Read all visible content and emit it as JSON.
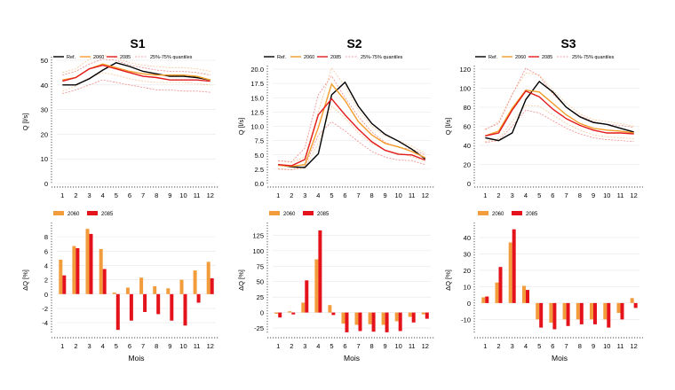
{
  "months_label": "Mois",
  "legend_labels": {
    "ref": "Ref.",
    "y2060": "2060",
    "y2085": "2085",
    "quant": "25%-75% quantiles"
  },
  "colors": {
    "ref": "#000000",
    "y2060": "#f39c2a",
    "y2085": "#e31a1c",
    "y2060_bar": "#f39c3c",
    "y2085_bar": "#e4131b",
    "band_2060": "#f5c89a",
    "band_2085": "#f08a8a"
  },
  "chart_data": [
    {
      "id": "S1",
      "type": "line",
      "title": "S1",
      "ylabel": "Q [l/s]",
      "xlabel": "",
      "x": [
        1,
        2,
        3,
        4,
        5,
        6,
        7,
        8,
        9,
        10,
        11,
        12
      ],
      "ylim": [
        0,
        50
      ],
      "yticks": [
        0,
        10,
        20,
        30,
        40,
        50
      ],
      "legend": "top",
      "series": [
        {
          "name": "Ref.",
          "key": "ref",
          "values": [
            40,
            40,
            42.5,
            46,
            49,
            47.5,
            45.5,
            44.5,
            43.5,
            43.5,
            43,
            42
          ]
        },
        {
          "name": "2060",
          "key": "y2060",
          "values": [
            42,
            43,
            46.5,
            48.5,
            47,
            45.5,
            44.5,
            44,
            44,
            44,
            43.5,
            42
          ]
        },
        {
          "name": "2085",
          "key": "y2085",
          "values": [
            41.5,
            43,
            46.5,
            48,
            46.5,
            45,
            43.5,
            43,
            42,
            42,
            42,
            41.5
          ]
        }
      ],
      "bands": [
        {
          "key": "y2060",
          "lo": [
            37.5,
            39.5,
            43,
            45,
            44,
            42.5,
            41.5,
            41,
            41,
            41,
            40.5,
            40
          ],
          "hi": [
            45,
            46.5,
            50.5,
            52,
            51,
            49,
            48,
            47.5,
            47,
            47,
            46.5,
            45.5
          ]
        },
        {
          "key": "y2085",
          "lo": [
            36.5,
            38,
            40,
            42,
            41,
            40,
            39,
            38,
            38,
            37.5,
            37.5,
            37
          ],
          "hi": [
            44,
            45.5,
            48.5,
            50.5,
            50,
            48,
            47,
            46,
            45.5,
            45.5,
            45,
            44
          ]
        }
      ]
    },
    {
      "id": "S2",
      "type": "line",
      "title": "S2",
      "ylabel": "Q [l/s]",
      "xlabel": "",
      "x": [
        1,
        2,
        3,
        4,
        5,
        6,
        7,
        8,
        9,
        10,
        11,
        12
      ],
      "ylim": [
        0,
        20
      ],
      "yticks": [
        0.0,
        2.5,
        5.0,
        7.5,
        10.0,
        12.5,
        15.0,
        17.5,
        20.0
      ],
      "legend": "top",
      "series": [
        {
          "name": "Ref.",
          "key": "ref",
          "values": [
            3.3,
            2.9,
            2.8,
            5.2,
            15.5,
            17.7,
            13.5,
            10.5,
            8.6,
            7.4,
            6.0,
            4.3
          ]
        },
        {
          "name": "2060",
          "key": "y2060",
          "values": [
            3.2,
            3.0,
            3.3,
            9.8,
            17.4,
            14.5,
            10.8,
            8.5,
            7.0,
            6.4,
            5.6,
            4.5
          ]
        },
        {
          "name": "2085",
          "key": "y2085",
          "values": [
            3.3,
            3.1,
            4.2,
            12.0,
            14.8,
            12.0,
            9.5,
            7.3,
            5.8,
            5.1,
            5.0,
            4.1
          ]
        }
      ],
      "bands": [
        {
          "key": "y2060",
          "lo": [
            2.6,
            2.4,
            2.7,
            7.0,
            13.5,
            11.5,
            8.8,
            7.0,
            5.8,
            5.3,
            4.7,
            3.8
          ],
          "hi": [
            3.9,
            3.7,
            4.6,
            12.5,
            20.2,
            17.0,
            12.8,
            10.0,
            8.3,
            7.5,
            6.5,
            5.3
          ]
        },
        {
          "key": "y2085",
          "lo": [
            2.5,
            2.4,
            3.0,
            8.5,
            10.8,
            9.2,
            7.3,
            5.6,
            4.6,
            4.1,
            4.0,
            3.3
          ],
          "hi": [
            4.0,
            3.8,
            6.2,
            15.5,
            18.8,
            15.0,
            11.7,
            9.0,
            7.2,
            6.3,
            6.0,
            5.0
          ]
        }
      ]
    },
    {
      "id": "S3",
      "type": "line",
      "title": "S3",
      "ylabel": "Q [l/s]",
      "xlabel": "",
      "x": [
        1,
        2,
        3,
        4,
        5,
        6,
        7,
        8,
        9,
        10,
        11,
        12
      ],
      "ylim": [
        0,
        120
      ],
      "yticks": [
        0,
        20,
        40,
        60,
        80,
        100,
        120
      ],
      "legend": "top",
      "series": [
        {
          "name": "Ref.",
          "key": "ref",
          "values": [
            48,
            45,
            53,
            88,
            107,
            96,
            80,
            70,
            64,
            62,
            58,
            54
          ]
        },
        {
          "name": "2060",
          "key": "y2060",
          "values": [
            50,
            55,
            79,
            98,
            96,
            84,
            72,
            63,
            58,
            56,
            55,
            53
          ]
        },
        {
          "name": "2085",
          "key": "y2085",
          "values": [
            50,
            53,
            77,
            97,
            91,
            78,
            68,
            61,
            56,
            53,
            53,
            52
          ]
        }
      ],
      "bands": [
        {
          "key": "y2060",
          "lo": [
            44,
            47,
            65,
            82,
            81,
            72,
            63,
            56,
            51,
            49,
            48,
            47
          ],
          "hi": [
            56,
            65,
            94,
            116,
            114,
            98,
            84,
            73,
            67,
            65,
            63,
            60
          ]
        },
        {
          "key": "y2085",
          "lo": [
            43,
            45,
            60,
            77,
            74,
            66,
            58,
            52,
            48,
            46,
            45,
            44
          ],
          "hi": [
            57,
            63,
            93,
            121,
            113,
            94,
            80,
            71,
            65,
            62,
            61,
            59
          ]
        }
      ]
    },
    {
      "id": "dS1",
      "type": "bar",
      "title": "",
      "ylabel": "ΔQ [%]",
      "xlabel": "Mois",
      "categories": [
        "1",
        "2",
        "3",
        "4",
        "5",
        "6",
        "7",
        "8",
        "9",
        "10",
        "11",
        "12"
      ],
      "ylim": [
        -5.6,
        9.5
      ],
      "yticks": [
        -4,
        -2,
        0,
        2,
        4,
        6,
        8
      ],
      "legend": "top-left",
      "series": [
        {
          "name": "2060",
          "key": "y2060",
          "values": [
            4.8,
            6.7,
            9.1,
            6.3,
            0.2,
            0.9,
            2.3,
            1.1,
            0.8,
            2.0,
            3.3,
            4.5
          ]
        },
        {
          "name": "2085",
          "key": "y2085",
          "values": [
            2.6,
            6.4,
            8.4,
            3.5,
            -5.0,
            -3.7,
            -2.5,
            -2.8,
            -3.7,
            -4.4,
            -1.2,
            2.2
          ]
        }
      ]
    },
    {
      "id": "dS2",
      "type": "bar",
      "title": "",
      "ylabel": "ΔQ [%]",
      "xlabel": "Mois",
      "categories": [
        "1",
        "2",
        "3",
        "4",
        "5",
        "6",
        "7",
        "8",
        "9",
        "10",
        "11",
        "12"
      ],
      "ylim": [
        -35,
        140
      ],
      "yticks": [
        -25,
        0,
        25,
        50,
        75,
        100,
        125
      ],
      "legend": "top-left",
      "series": [
        {
          "name": "2060",
          "key": "y2060",
          "values": [
            -2,
            2,
            16,
            86,
            12,
            -18,
            -20,
            -19,
            -20,
            -14,
            -7,
            -3
          ]
        },
        {
          "name": "2085",
          "key": "y2085",
          "values": [
            -8,
            -3,
            52,
            133,
            -4,
            -32,
            -30,
            -31,
            -32,
            -30,
            -16,
            -10
          ]
        }
      ]
    },
    {
      "id": "dS3",
      "type": "bar",
      "title": "",
      "ylabel": "ΔQ [%]",
      "xlabel": "Mois",
      "categories": [
        "1",
        "2",
        "3",
        "4",
        "5",
        "6",
        "7",
        "8",
        "9",
        "10",
        "11",
        "12"
      ],
      "ylim": [
        -19,
        47
      ],
      "yticks": [
        -10,
        0,
        10,
        20,
        30,
        40
      ],
      "legend": "top-left",
      "series": [
        {
          "name": "2060",
          "key": "y2060",
          "values": [
            3.5,
            12.5,
            37,
            10.5,
            -10,
            -12,
            -10,
            -10,
            -10,
            -10,
            -6,
            3
          ]
        },
        {
          "name": "2085",
          "key": "y2085",
          "values": [
            4,
            22,
            45,
            8,
            -15,
            -16,
            -14,
            -13,
            -13,
            -15,
            -10,
            -3
          ]
        }
      ]
    }
  ]
}
